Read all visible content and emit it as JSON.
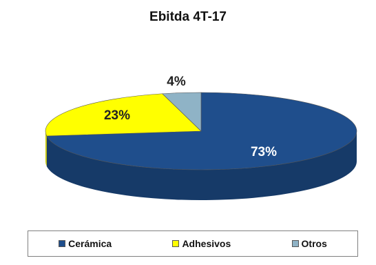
{
  "chart_data": {
    "type": "pie",
    "title": "Ebitda 4T-17",
    "categories": [
      "Cerámica",
      "Adhesivos",
      "Otros"
    ],
    "values": [
      73,
      23,
      4
    ],
    "labels": [
      "73%",
      "23%",
      "4%"
    ],
    "colors": [
      "#1f4e8c",
      "#ffff00",
      "#8fb3c6"
    ],
    "dark_colors": [
      "#163a68",
      "#c8c800",
      "#6d8fa0"
    ],
    "label_colors": [
      "#ffffff",
      "#222222",
      "#222222"
    ],
    "style": "3d",
    "legend": "bottom"
  }
}
